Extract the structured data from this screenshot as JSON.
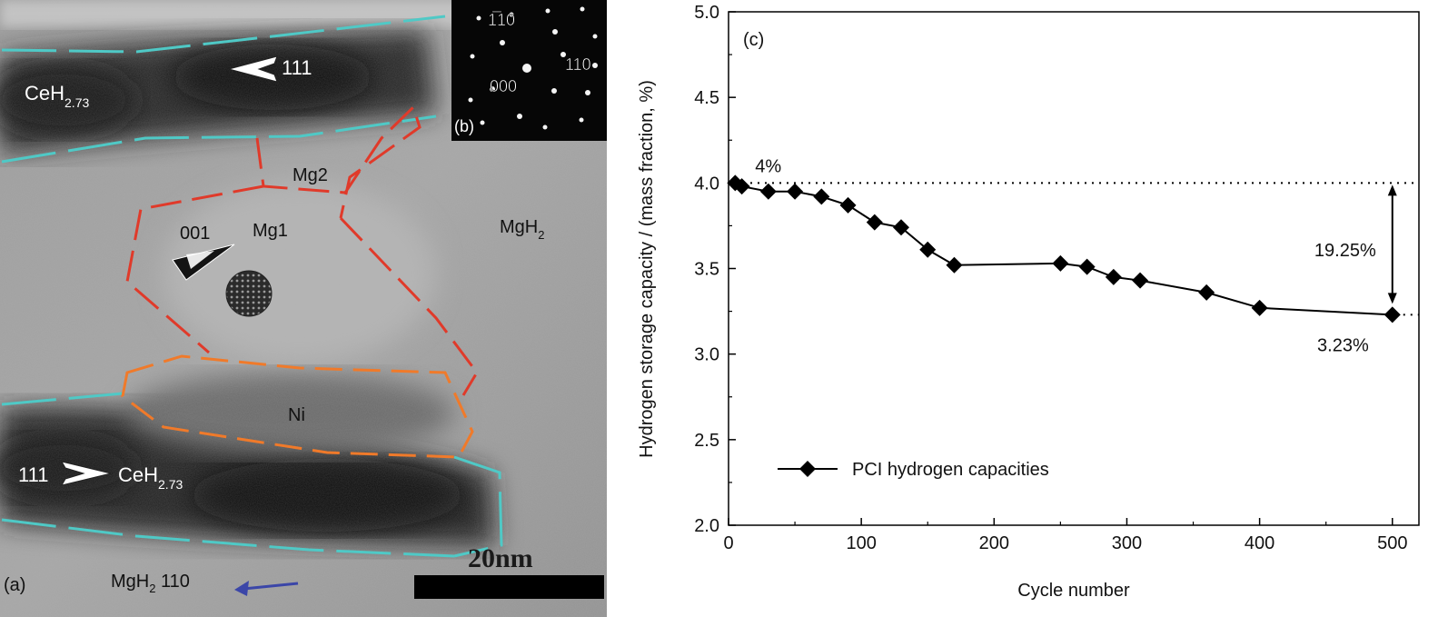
{
  "micrograph": {
    "panel_a_label": "(a)",
    "panel_b_label": "(b)",
    "phase_labels": {
      "ceh_top_main": "CeH",
      "ceh_top_sub": "2.73",
      "ceh_bottom_main": "CeH",
      "ceh_bottom_sub": "2.73",
      "mgh2_main": "MgH",
      "mgh2_sub": "2",
      "mg1": "Mg1",
      "mg2": "Mg2",
      "ni": "Ni"
    },
    "direction_labels": {
      "top_111": "111",
      "bottom_111": "111",
      "mg1_001": "001"
    },
    "bottom_note_main": "MgH",
    "bottom_note_sub": "2",
    "bottom_note_rest": " 110",
    "scale_bar_label": "20nm",
    "diffraction_labels": {
      "spot_1b10": "1̅10",
      "spot_110": "110",
      "spot_000": "000"
    },
    "colors": {
      "ceh_boundary": "#4fc9c6",
      "mg_boundary": "#e03a2a",
      "ni_boundary": "#f07a2a",
      "direction_arrow": "#3b46a8"
    }
  },
  "chart_data": {
    "type": "line",
    "panel_label": "(c)",
    "xlabel": "Cycle number",
    "ylabel": "Hydrogen storage capacity / (mass fraction, %)",
    "xlim": [
      0,
      520
    ],
    "ylim": [
      2.0,
      5.0
    ],
    "xticks": [
      "0",
      "100",
      "200",
      "300",
      "400",
      "500"
    ],
    "yticks": [
      "2.0",
      "2.5",
      "3.0",
      "3.5",
      "4.0",
      "4.5",
      "5.0"
    ],
    "series": [
      {
        "name": "PCI hydrogen capacities",
        "marker": "diamond",
        "color": "#000000",
        "x": [
          5,
          10,
          30,
          50,
          70,
          90,
          110,
          130,
          150,
          170,
          250,
          270,
          290,
          310,
          360,
          400,
          500
        ],
        "y": [
          4.0,
          3.98,
          3.95,
          3.95,
          3.92,
          3.87,
          3.77,
          3.74,
          3.61,
          3.52,
          3.53,
          3.51,
          3.45,
          3.43,
          3.36,
          3.27,
          3.23
        ]
      }
    ],
    "reference_lines": {
      "upper": 4.0,
      "lower": 3.23
    },
    "annotations": {
      "start_value": "4%",
      "end_value": "3.23%",
      "loss": "19.25%"
    },
    "legend": {
      "position": "bottom-left"
    }
  }
}
